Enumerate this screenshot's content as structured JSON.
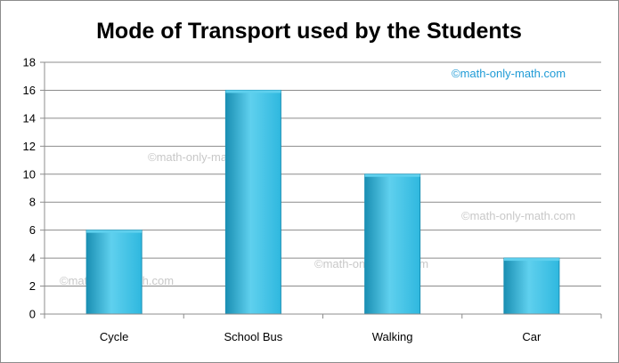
{
  "chart_data": {
    "type": "bar",
    "title": "Mode of Transport used by the Students",
    "categories": [
      "Cycle",
      "School Bus",
      "Walking",
      "Car"
    ],
    "values": [
      6,
      16,
      10,
      4
    ],
    "ylim": [
      0,
      18
    ],
    "yticks": [
      "0",
      "2",
      "4",
      "6",
      "8",
      "10",
      "12",
      "14",
      "16",
      "18"
    ],
    "xlabel": "",
    "ylabel": "",
    "grid": true,
    "legend": "none",
    "colors": {
      "bar_light": "#5fd0ee",
      "bar_mid": "#2fb8df",
      "bar_dark": "#1a8fb3",
      "grid": "#8c8c8c",
      "watermark_header": "#1f9bd6",
      "watermark": "#c8c8c8"
    }
  },
  "watermarks": [
    "©math-only-math.com",
    "©math-only-math.com",
    "©math-only-math.com",
    "©math-only-math.com",
    "©math-only-math.com"
  ]
}
